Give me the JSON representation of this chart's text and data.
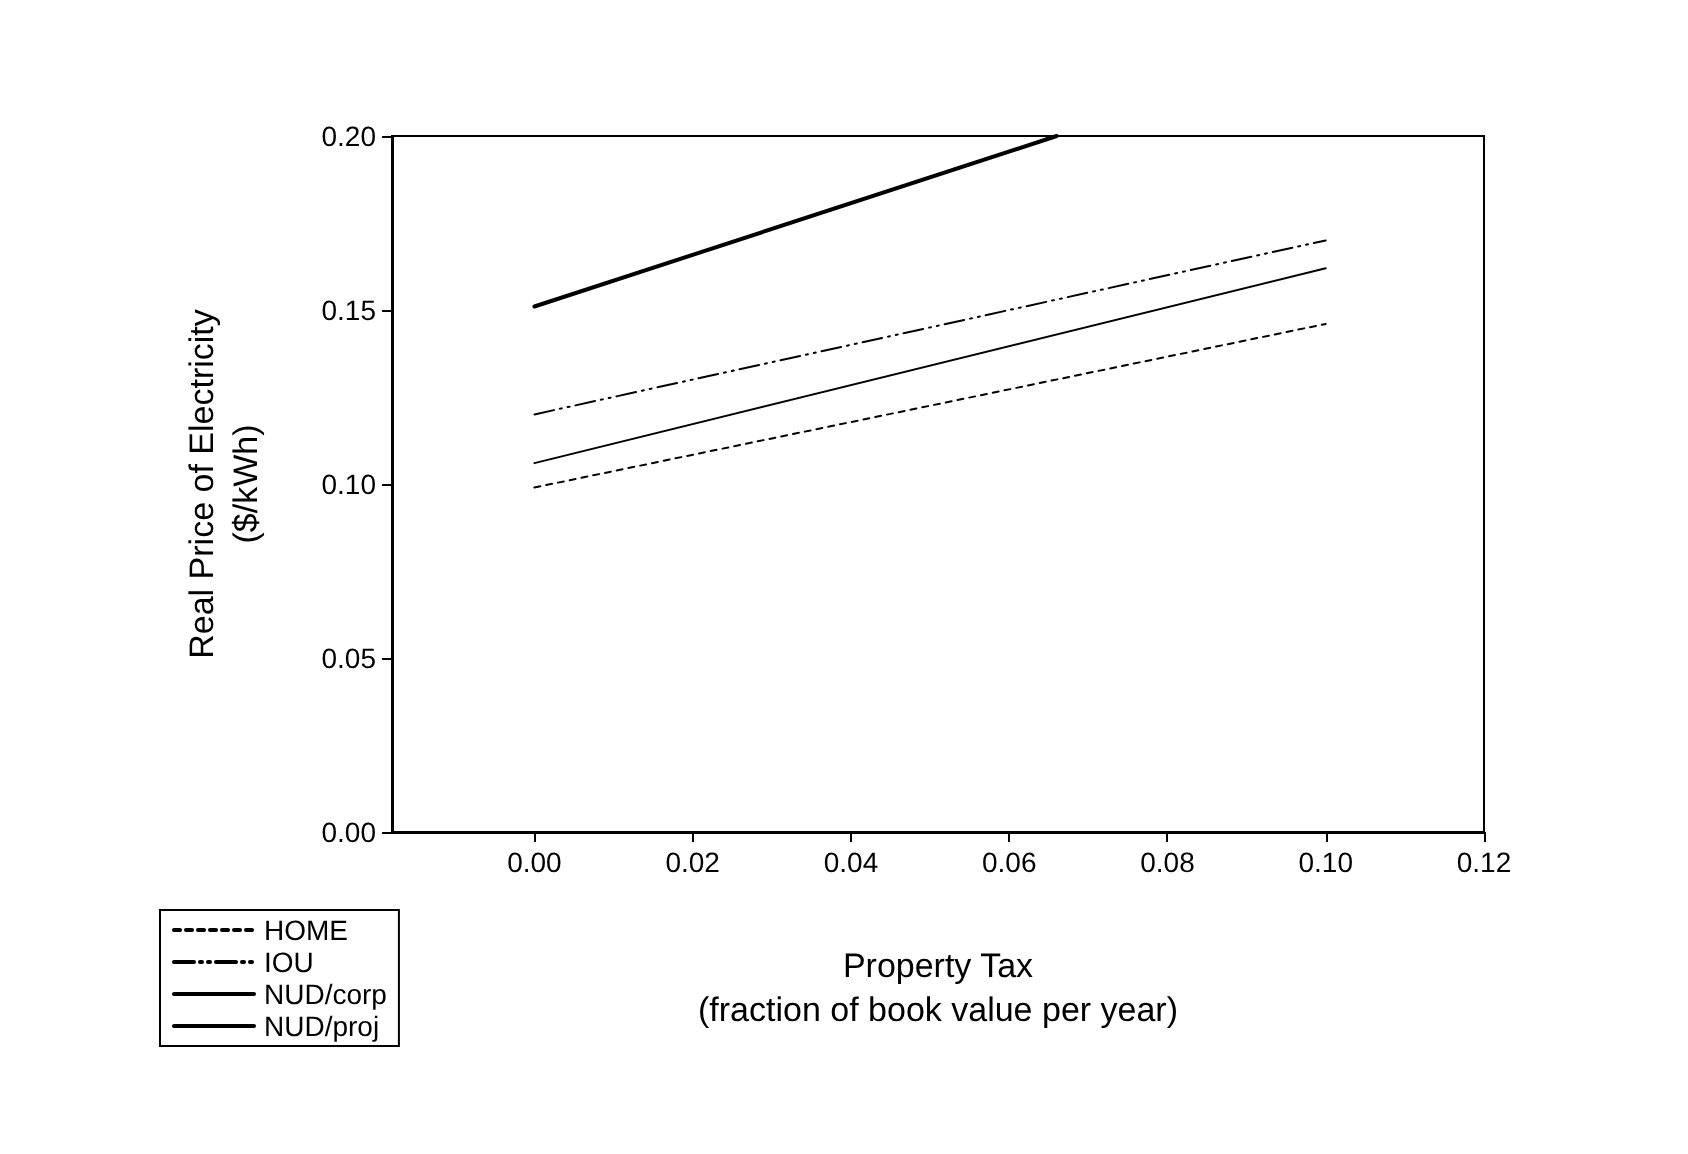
{
  "chart_data": {
    "type": "line",
    "xlabel": "Property Tax\n(fraction of book value per year)",
    "ylabel": "Real Price of Electricity\n($/kWh)",
    "xlim": [
      -0.018,
      0.12
    ],
    "xticks": [
      {
        "value": 0,
        "label": "0.00"
      },
      0.02,
      0.04,
      0.06,
      0.08,
      {
        "value": 0.1,
        "label": "0.10"
      },
      0.12
    ],
    "ylim": [
      0,
      0.2
    ],
    "yticks": [
      {
        "value": 0,
        "label": "0.00"
      },
      0.05,
      {
        "value": 0.1,
        "label": "0.10"
      },
      0.15,
      {
        "value": 0.2,
        "label": "0.20"
      }
    ],
    "grid": false,
    "legend": "bottom left",
    "marker": "none",
    "series": [
      {
        "name": "HOME",
        "color": "#000000",
        "line_style": "dotted",
        "x": [
          0,
          0.1
        ],
        "values": [
          0.099,
          0.146
        ]
      },
      {
        "name": "IOU",
        "color": "#000000",
        "line_style": "dashed",
        "x": [
          0,
          0.1
        ],
        "values": [
          0.12,
          0.17
        ]
      },
      {
        "name": "NUD/corp",
        "color": "#000000",
        "line_style": "solid",
        "x": [
          0,
          0.1
        ],
        "values": [
          0.106,
          0.162
        ]
      },
      {
        "name": "NUD/proj",
        "color": "#000000",
        "line_style": "solid",
        "x": [
          0,
          0.066
        ],
        "values": [
          0.151,
          0.2
        ]
      }
    ]
  }
}
